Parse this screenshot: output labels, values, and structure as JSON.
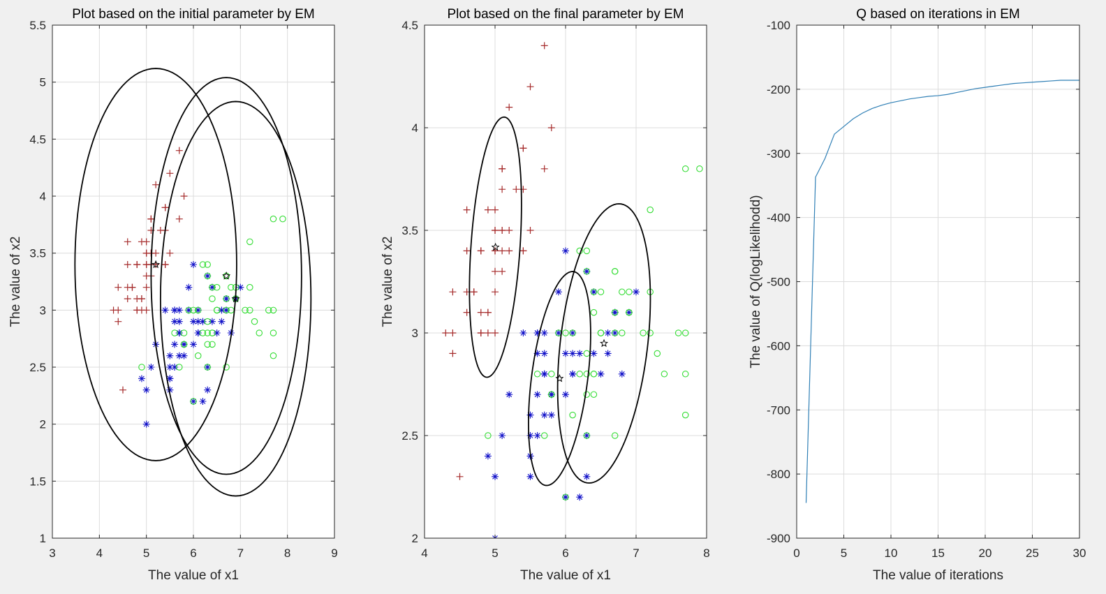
{
  "figure": {
    "background": "#f0f0f0"
  },
  "colors": {
    "class1": "#a52a2a",
    "class2": "#1010c8",
    "class3": "#33dd33",
    "curve": "#2f7fb5",
    "ellipse": "#000000",
    "grid": "#dcdcdc"
  },
  "chart_data": [
    {
      "type": "scatter",
      "title": "Plot based on the initial parameter by EM",
      "xlabel": "The value of x1",
      "ylabel": "The value of x2",
      "xlim": [
        3,
        9
      ],
      "ylim": [
        1,
        5.5
      ],
      "xticks": [
        3,
        4,
        5,
        6,
        7,
        8,
        9
      ],
      "yticks": [
        1,
        1.5,
        2,
        2.5,
        3,
        3.5,
        4,
        4.5,
        5,
        5.5
      ],
      "grid": true,
      "series": [
        {
          "marker": "plus",
          "color": "#a52a2a",
          "x": [
            5.1,
            4.9,
            4.7,
            4.6,
            5.0,
            5.4,
            4.6,
            5.0,
            4.4,
            4.9,
            5.4,
            4.8,
            4.8,
            4.3,
            5.8,
            5.7,
            5.4,
            5.1,
            5.7,
            5.1,
            5.4,
            5.1,
            4.6,
            5.1,
            4.8,
            5.0,
            5.0,
            5.2,
            5.2,
            4.7,
            4.8,
            5.4,
            5.2,
            5.5,
            4.9,
            5.0,
            5.5,
            4.9,
            4.4,
            5.1,
            5.0,
            4.5,
            4.4,
            5.0,
            5.1,
            4.8,
            5.1,
            4.6,
            5.3,
            5.0
          ],
          "y": [
            3.5,
            3.0,
            3.2,
            3.1,
            3.6,
            3.9,
            3.4,
            3.4,
            2.9,
            3.1,
            3.7,
            3.4,
            3.0,
            3.0,
            4.0,
            4.4,
            3.9,
            3.5,
            3.8,
            3.8,
            3.4,
            3.7,
            3.6,
            3.3,
            3.4,
            3.0,
            3.4,
            3.5,
            3.4,
            3.2,
            3.1,
            3.4,
            4.1,
            4.2,
            3.1,
            3.2,
            3.5,
            3.6,
            3.0,
            3.4,
            3.5,
            2.3,
            3.2,
            3.5,
            3.8,
            3.0,
            3.8,
            3.2,
            3.7,
            3.3
          ]
        },
        {
          "marker": "asterisk",
          "color": "#1010c8",
          "x": [
            7.0,
            6.4,
            6.9,
            5.5,
            6.5,
            5.7,
            6.3,
            4.9,
            6.6,
            5.2,
            5.0,
            5.9,
            6.0,
            6.1,
            5.6,
            6.7,
            5.6,
            5.8,
            6.2,
            5.6,
            5.9,
            6.1,
            6.3,
            6.1,
            6.4,
            6.6,
            6.8,
            6.7,
            6.0,
            5.7,
            5.5,
            5.5,
            5.8,
            6.0,
            5.4,
            6.0,
            6.7,
            6.3,
            5.6,
            5.5,
            5.5,
            6.1,
            5.8,
            5.0,
            5.6,
            5.7,
            5.7,
            6.2,
            5.1,
            5.7
          ],
          "y": [
            3.2,
            3.2,
            3.1,
            2.3,
            2.8,
            2.8,
            3.3,
            2.4,
            2.9,
            2.7,
            2.0,
            3.0,
            2.2,
            2.9,
            2.9,
            3.1,
            3.0,
            2.7,
            2.2,
            2.5,
            3.2,
            2.8,
            2.5,
            2.8,
            2.9,
            3.0,
            2.8,
            3.0,
            2.9,
            2.6,
            2.4,
            2.4,
            2.7,
            2.7,
            3.0,
            3.4,
            3.1,
            2.3,
            3.0,
            2.5,
            2.6,
            3.0,
            2.6,
            2.3,
            2.7,
            3.0,
            2.9,
            2.9,
            2.5,
            2.8
          ]
        },
        {
          "marker": "circle",
          "color": "#33dd33",
          "x": [
            6.3,
            5.8,
            7.1,
            6.3,
            6.5,
            7.6,
            4.9,
            7.3,
            6.7,
            7.2,
            6.5,
            6.4,
            6.8,
            5.7,
            5.8,
            6.4,
            6.5,
            7.7,
            7.7,
            6.0,
            6.9,
            5.6,
            7.7,
            6.3,
            6.7,
            7.2,
            6.2,
            6.1,
            6.4,
            7.2,
            7.4,
            7.9,
            6.4,
            6.3,
            6.1,
            7.7,
            6.3,
            6.4,
            6.0,
            6.9,
            6.7,
            6.9,
            5.8,
            6.8,
            6.7,
            6.7,
            6.3,
            6.5,
            6.2,
            5.9
          ],
          "y": [
            3.3,
            2.7,
            3.0,
            2.9,
            3.0,
            3.0,
            2.5,
            2.9,
            2.5,
            3.6,
            3.2,
            2.7,
            3.0,
            2.5,
            2.8,
            3.2,
            3.0,
            3.8,
            2.6,
            2.2,
            3.2,
            2.8,
            2.8,
            2.7,
            3.3,
            3.2,
            2.8,
            3.0,
            2.8,
            3.0,
            2.8,
            3.8,
            2.8,
            2.8,
            2.6,
            3.0,
            3.4,
            3.1,
            3.0,
            3.1,
            3.1,
            3.1,
            2.7,
            3.2,
            3.3,
            3.0,
            2.5,
            3.0,
            3.4,
            3.0
          ]
        }
      ],
      "ellipses": [
        {
          "cx": 5.2,
          "cy": 3.4,
          "rx": 1.72,
          "ry": 1.72,
          "angle": 0
        },
        {
          "cx": 6.7,
          "cy": 3.3,
          "rx": 1.6,
          "ry": 1.74,
          "angle": 0
        },
        {
          "cx": 6.9,
          "cy": 3.1,
          "rx": 1.6,
          "ry": 1.73,
          "angle": 0
        }
      ],
      "centers": {
        "x": [
          5.2,
          6.7,
          6.9
        ],
        "y": [
          3.4,
          3.3,
          3.1
        ]
      }
    },
    {
      "type": "scatter",
      "title": "Plot based on the final parameter by EM",
      "xlabel": "The value of x1",
      "ylabel": "The value of x2",
      "xlim": [
        4,
        8
      ],
      "ylim": [
        2,
        4.5
      ],
      "xticks": [
        4,
        5,
        6,
        7,
        8
      ],
      "yticks": [
        2,
        2.5,
        3,
        3.5,
        4,
        4.5
      ],
      "grid": true,
      "series": [
        {
          "marker": "plus",
          "color": "#a52a2a",
          "x": [
            5.1,
            4.9,
            4.7,
            4.6,
            5.0,
            5.4,
            4.6,
            5.0,
            4.4,
            4.9,
            5.4,
            4.8,
            4.8,
            4.3,
            5.8,
            5.7,
            5.4,
            5.1,
            5.7,
            5.1,
            5.4,
            5.1,
            4.6,
            5.1,
            4.8,
            5.0,
            5.0,
            5.2,
            5.2,
            4.7,
            4.8,
            5.4,
            5.2,
            5.5,
            4.9,
            5.0,
            5.5,
            4.9,
            4.4,
            5.1,
            5.0,
            4.5,
            4.4,
            5.0,
            5.1,
            4.8,
            5.1,
            4.6,
            5.3,
            5.0
          ],
          "y": [
            3.5,
            3.0,
            3.2,
            3.1,
            3.6,
            3.9,
            3.4,
            3.4,
            2.9,
            3.1,
            3.7,
            3.4,
            3.0,
            3.0,
            4.0,
            4.4,
            3.9,
            3.5,
            3.8,
            3.8,
            3.4,
            3.7,
            3.6,
            3.3,
            3.4,
            3.0,
            3.4,
            3.5,
            3.4,
            3.2,
            3.1,
            3.4,
            4.1,
            4.2,
            3.1,
            3.2,
            3.5,
            3.6,
            3.0,
            3.4,
            3.5,
            2.3,
            3.2,
            3.5,
            3.8,
            3.0,
            3.8,
            3.2,
            3.7,
            3.3
          ]
        },
        {
          "marker": "asterisk",
          "color": "#1010c8",
          "x": [
            7.0,
            6.4,
            6.9,
            5.5,
            6.5,
            5.7,
            6.3,
            4.9,
            6.6,
            5.2,
            5.0,
            5.9,
            6.0,
            6.1,
            5.6,
            6.7,
            5.6,
            5.8,
            6.2,
            5.6,
            5.9,
            6.1,
            6.3,
            6.1,
            6.4,
            6.6,
            6.8,
            6.7,
            6.0,
            5.7,
            5.5,
            5.5,
            5.8,
            6.0,
            5.4,
            6.0,
            6.7,
            6.3,
            5.6,
            5.5,
            5.5,
            6.1,
            5.8,
            5.0,
            5.6,
            5.7,
            5.7,
            6.2,
            5.1,
            5.7
          ],
          "y": [
            3.2,
            3.2,
            3.1,
            2.3,
            2.8,
            2.8,
            3.3,
            2.4,
            2.9,
            2.7,
            2.0,
            3.0,
            2.2,
            2.9,
            2.9,
            3.1,
            3.0,
            2.7,
            2.2,
            2.5,
            3.2,
            2.8,
            2.5,
            2.8,
            2.9,
            3.0,
            2.8,
            3.0,
            2.9,
            2.6,
            2.4,
            2.4,
            2.7,
            2.7,
            3.0,
            3.4,
            3.1,
            2.3,
            3.0,
            2.5,
            2.6,
            3.0,
            2.6,
            2.3,
            2.7,
            3.0,
            2.9,
            2.9,
            2.5,
            2.8
          ]
        },
        {
          "marker": "circle",
          "color": "#33dd33",
          "x": [
            6.3,
            5.8,
            7.1,
            6.3,
            6.5,
            7.6,
            4.9,
            7.3,
            6.7,
            7.2,
            6.5,
            6.4,
            6.8,
            5.7,
            5.8,
            6.4,
            6.5,
            7.7,
            7.7,
            6.0,
            6.9,
            5.6,
            7.7,
            6.3,
            6.7,
            7.2,
            6.2,
            6.1,
            6.4,
            7.2,
            7.4,
            7.9,
            6.4,
            6.3,
            6.1,
            7.7,
            6.3,
            6.4,
            6.0,
            6.9,
            6.7,
            6.9,
            5.8,
            6.8,
            6.7,
            6.7,
            6.3,
            6.5,
            6.2,
            5.9
          ],
          "y": [
            3.3,
            2.7,
            3.0,
            2.9,
            3.0,
            3.0,
            2.5,
            2.9,
            2.5,
            3.6,
            3.2,
            2.7,
            3.0,
            2.5,
            2.8,
            3.2,
            3.0,
            3.8,
            2.6,
            2.2,
            3.2,
            2.8,
            2.8,
            2.7,
            3.3,
            3.2,
            2.8,
            3.0,
            2.8,
            3.0,
            2.8,
            3.8,
            2.8,
            2.8,
            2.6,
            3.0,
            3.4,
            3.1,
            3.0,
            3.1,
            3.1,
            3.1,
            2.7,
            3.2,
            3.3,
            3.0,
            2.5,
            3.0,
            3.4,
            3.0
          ]
        }
      ],
      "ellipses": [
        {
          "cx": 5.006,
          "cy": 3.418,
          "rx": 0.34,
          "ry": 0.65,
          "angle": -15
        },
        {
          "cx": 5.915,
          "cy": 2.778,
          "rx": 0.36,
          "ry": 0.58,
          "angle": -34
        },
        {
          "cx": 6.545,
          "cy": 2.949,
          "rx": 0.55,
          "ry": 0.77,
          "angle": -42
        }
      ],
      "centers": {
        "x": [
          5.006,
          5.915,
          6.545
        ],
        "y": [
          3.418,
          2.778,
          2.949
        ]
      }
    },
    {
      "type": "line",
      "title": "Q based on iterations in EM",
      "xlabel": "The value of iterations",
      "ylabel": "The value of Q(logLikelihodd)",
      "xlim": [
        0,
        30
      ],
      "ylim": [
        -900,
        -100
      ],
      "xticks": [
        0,
        5,
        10,
        15,
        20,
        25,
        30
      ],
      "yticks": [
        -900,
        -800,
        -700,
        -600,
        -500,
        -400,
        -300,
        -200,
        -100
      ],
      "grid": true,
      "series": [
        {
          "color": "#2f7fb5",
          "x": [
            1,
            2,
            3,
            4,
            5,
            6,
            7,
            8,
            9,
            10,
            11,
            12,
            13,
            14,
            15,
            16,
            17,
            18,
            19,
            20,
            21,
            22,
            23,
            24,
            25,
            26,
            27,
            28,
            29,
            30
          ],
          "y": [
            -845,
            -337,
            -308,
            -270,
            -258,
            -246,
            -237,
            -230,
            -225,
            -221,
            -218,
            -215,
            -213,
            -211,
            -210,
            -208,
            -205,
            -202,
            -199,
            -197,
            -195,
            -193,
            -191,
            -190,
            -189,
            -188,
            -187,
            -186,
            -186,
            -186
          ]
        }
      ]
    }
  ]
}
